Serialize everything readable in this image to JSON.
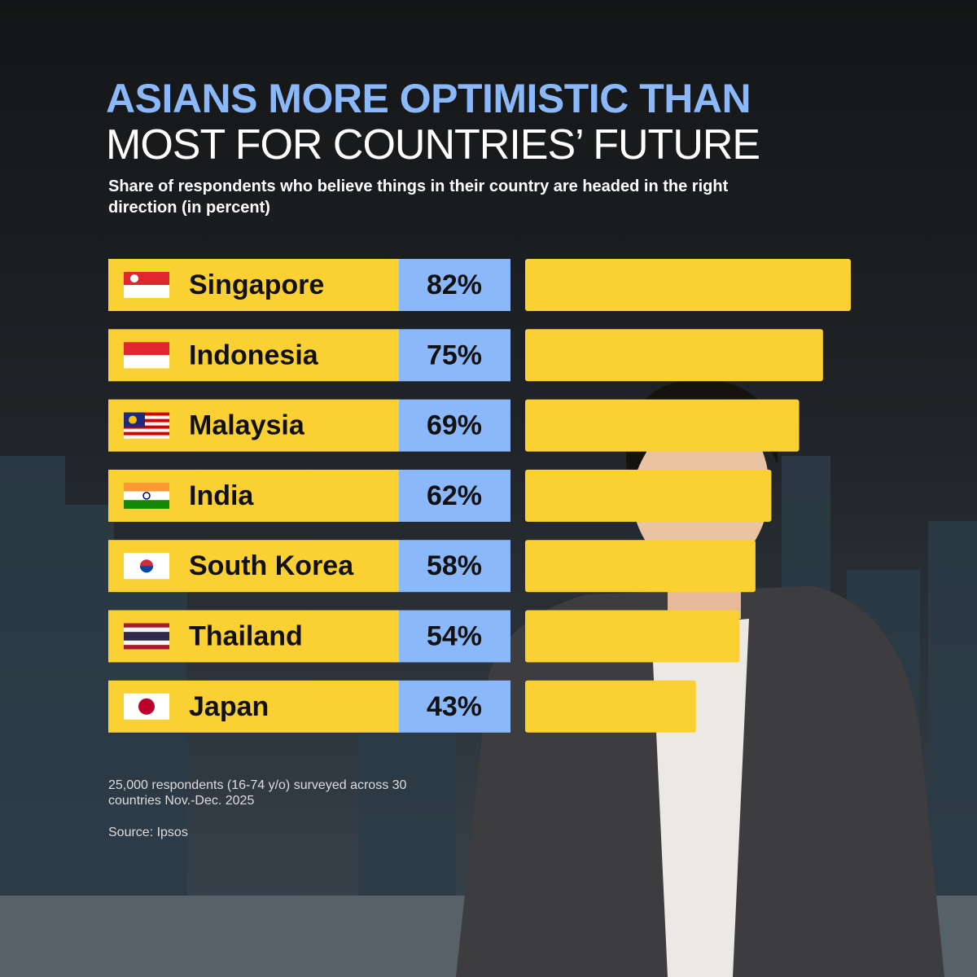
{
  "chart_data": {
    "type": "bar",
    "title": "ASIANS MORE OPTIMISTIC THAN",
    "title_line2": "MOST FOR COUNTRIES’ FUTURE",
    "subtitle": "Share of respondents who believe things in their country are headed in the right direction (in percent)",
    "categories": [
      "Singapore",
      "Indonesia",
      "Malaysia",
      "India",
      "South Korea",
      "Thailand",
      "Japan"
    ],
    "values": [
      82,
      75,
      69,
      62,
      58,
      54,
      43
    ],
    "value_labels": [
      "82%",
      "75%",
      "69%",
      "62%",
      "58%",
      "54%",
      "43%"
    ],
    "color": "#fbd033",
    "note": "25,000 respondents (16-74 y/o) surveyed across 30 countries Nov.-Dec. 2025",
    "source": "Source: Ipsos"
  }
}
